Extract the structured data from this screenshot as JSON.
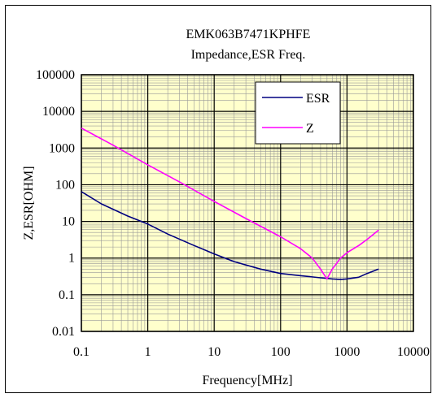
{
  "chart_data": {
    "type": "line",
    "title": "EMK063B7471KPHFE",
    "subtitle": "Impedance,ESR  Freq.",
    "xlabel": "Frequency[MHz]",
    "ylabel": "Z,ESR[OHM]",
    "x_scale": "log",
    "y_scale": "log",
    "xlim": [
      0.1,
      10000
    ],
    "ylim": [
      0.01,
      100000
    ],
    "x_ticks": [
      "0.1",
      "1",
      "10",
      "100",
      "1000",
      "10000"
    ],
    "y_ticks": [
      "100000",
      "10000",
      "1000",
      "100",
      "10",
      "1",
      "0.1",
      "0.01"
    ],
    "grid": true,
    "plot_background": "#ffffcc",
    "legend_position": "top-right",
    "series": [
      {
        "name": "ESR",
        "color": "#000080",
        "points": [
          [
            0.1,
            65
          ],
          [
            0.2,
            30
          ],
          [
            0.5,
            14
          ],
          [
            1,
            8.5
          ],
          [
            2,
            4.5
          ],
          [
            5,
            2.2
          ],
          [
            10,
            1.3
          ],
          [
            20,
            0.8
          ],
          [
            50,
            0.5
          ],
          [
            100,
            0.38
          ],
          [
            200,
            0.33
          ],
          [
            400,
            0.29
          ],
          [
            600,
            0.27
          ],
          [
            800,
            0.26
          ],
          [
            1000,
            0.27
          ],
          [
            1500,
            0.3
          ],
          [
            2000,
            0.38
          ],
          [
            3000,
            0.5
          ]
        ]
      },
      {
        "name": "Z",
        "color": "#ff00ff",
        "points": [
          [
            0.1,
            3500
          ],
          [
            0.3,
            1200
          ],
          [
            1,
            350
          ],
          [
            3,
            120
          ],
          [
            10,
            35
          ],
          [
            30,
            12
          ],
          [
            100,
            3.8
          ],
          [
            200,
            1.8
          ],
          [
            300,
            1.0
          ],
          [
            400,
            0.5
          ],
          [
            500,
            0.27
          ],
          [
            600,
            0.5
          ],
          [
            800,
            1.0
          ],
          [
            1000,
            1.4
          ],
          [
            1500,
            2.2
          ],
          [
            2000,
            3.2
          ],
          [
            3000,
            5.8
          ]
        ]
      }
    ]
  }
}
